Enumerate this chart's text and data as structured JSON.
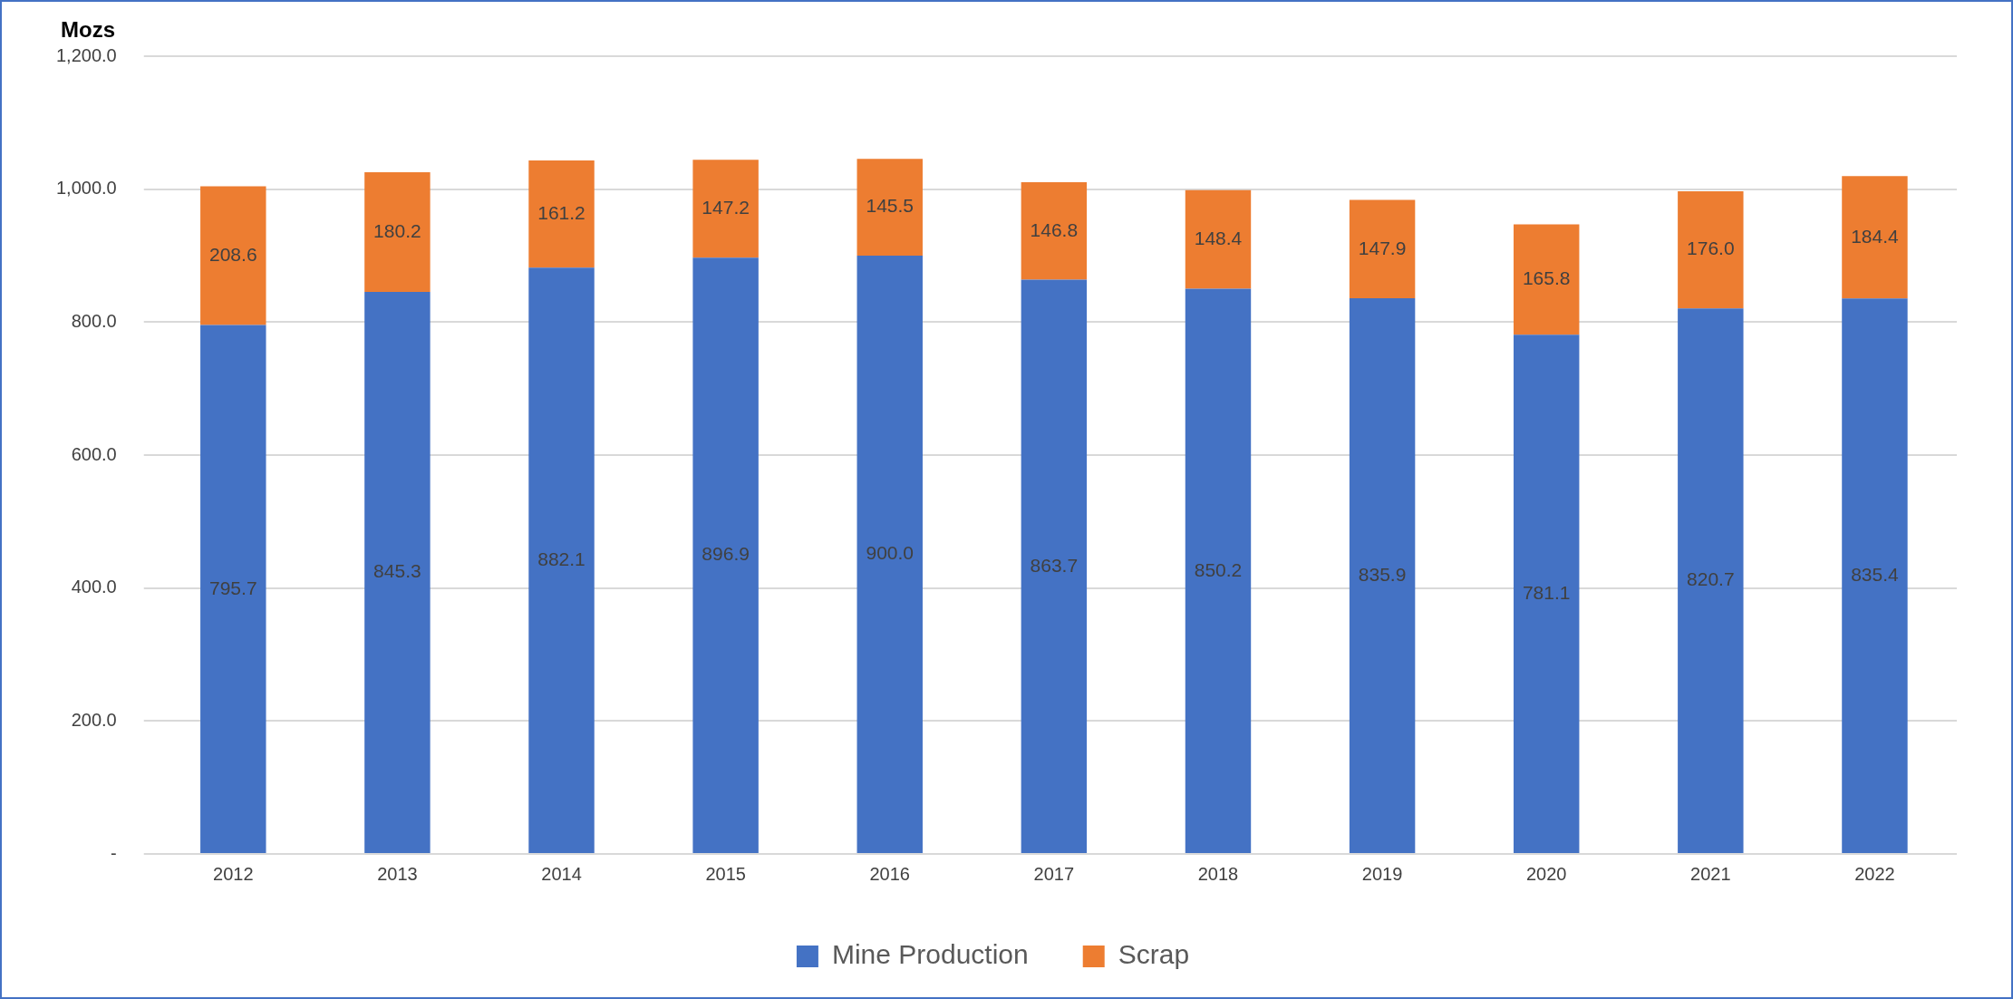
{
  "chart_data": {
    "type": "bar",
    "stacked": true,
    "ylabel": "Mozs",
    "categories": [
      "2012",
      "2013",
      "2014",
      "2015",
      "2016",
      "2017",
      "2018",
      "2019",
      "2020",
      "2021",
      "2022"
    ],
    "series": [
      {
        "name": "Mine Production",
        "color": "#4472c4",
        "values": [
          795.7,
          845.3,
          882.1,
          896.9,
          900.0,
          863.7,
          850.2,
          835.9,
          781.1,
          820.7,
          835.4
        ],
        "value_labels": [
          "795.7",
          "845.3",
          "882.1",
          "896.9",
          "900.0",
          "863.7",
          "850.2",
          "835.9",
          "781.1",
          "820.7",
          "835.4"
        ]
      },
      {
        "name": "Scrap",
        "color": "#ed7d31",
        "values": [
          208.6,
          180.2,
          161.2,
          147.2,
          145.5,
          146.8,
          148.4,
          147.9,
          165.8,
          176.0,
          184.4
        ],
        "value_labels": [
          "208.6",
          "180.2",
          "161.2",
          "147.2",
          "145.5",
          "146.8",
          "148.4",
          "147.9",
          "165.8",
          "176.0",
          "184.4"
        ]
      }
    ],
    "ylim": [
      0,
      1200
    ],
    "yticks": [
      {
        "value": 0,
        "label": "-"
      },
      {
        "value": 200,
        "label": "200.0"
      },
      {
        "value": 400,
        "label": "400.0"
      },
      {
        "value": 600,
        "label": "600.0"
      },
      {
        "value": 800,
        "label": "800.0"
      },
      {
        "value": 1000,
        "label": "1,000.0"
      },
      {
        "value": 1200,
        "label": "1,200.0"
      }
    ],
    "grid": "y",
    "legend": "bottom"
  }
}
